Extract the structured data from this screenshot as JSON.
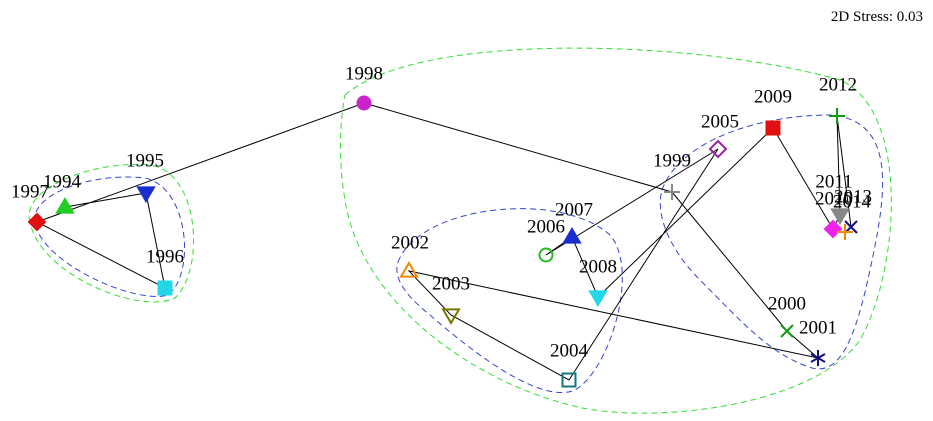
{
  "stress_label": "2D Stress: 0.03",
  "nodes": [
    {
      "label": "1994"
    },
    {
      "label": "1995"
    },
    {
      "label": "1996"
    },
    {
      "label": "1997"
    },
    {
      "label": "1998"
    },
    {
      "label": "1999"
    },
    {
      "label": "2000"
    },
    {
      "label": "2001"
    },
    {
      "label": "2002"
    },
    {
      "label": "2003"
    },
    {
      "label": "2004"
    },
    {
      "label": "2005"
    },
    {
      "label": "2006"
    },
    {
      "label": "2007"
    },
    {
      "label": "2008"
    },
    {
      "label": "2009"
    },
    {
      "label": "2010"
    },
    {
      "label": "2011"
    },
    {
      "label": "2012"
    },
    {
      "label": "2013"
    },
    {
      "label": "2014"
    }
  ]
}
